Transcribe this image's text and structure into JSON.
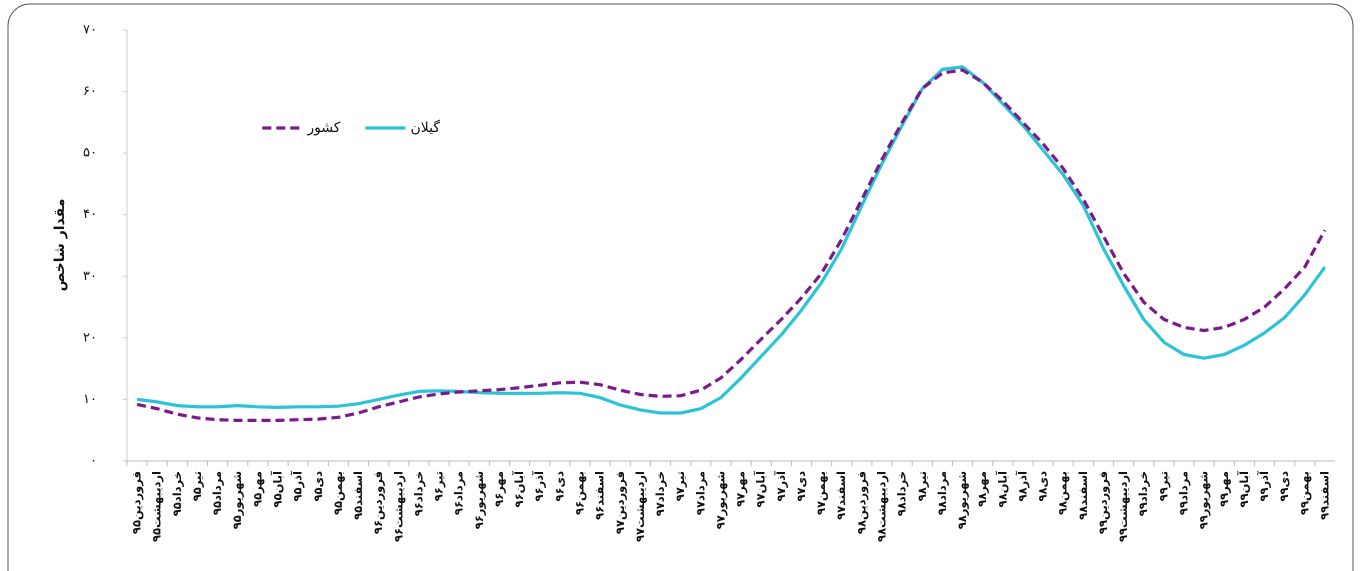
{
  "chart_data": {
    "type": "line",
    "ylabel": "مقدار شاخص",
    "categories": [
      "فروردین۹۵",
      "اردیبهشت۹۵",
      "خرداد۹۵",
      "تیر۹۵",
      "مرداد۹۵",
      "شهریور۹۵",
      "مهر۹۵",
      "آبان۹۵",
      "آذر۹۵",
      "دی۹۵",
      "بهمن۹۵",
      "اسفند۹۵",
      "فروردین۹۶",
      "اردیبهشت۹۶",
      "خرداد۹۶",
      "تیر۹۶",
      "مرداد۹۶",
      "شهریور۹۶",
      "مهر۹۶",
      "آبان۹۶",
      "آذر۹۶",
      "دی۹۶",
      "بهمن۹۶",
      "اسفند۹۶",
      "فروردین۹۷",
      "اردیبهشت۹۷",
      "خرداد۹۷",
      "تیر۹۷",
      "مرداد۹۷",
      "شهریور۹۷",
      "مهر۹۷",
      "آبان۹۷",
      "آذر۹۷",
      "دی۹۷",
      "بهمن۹۷",
      "اسفند۹۷",
      "فروردین۹۸",
      "اردیبهشت۹۸",
      "خرداد۹۸",
      "تیر۹۸",
      "مرداد۹۸",
      "شهریور۹۸",
      "مهر۹۸",
      "آبان۹۸",
      "آذر۹۸",
      "دی۹۸",
      "بهمن۹۸",
      "اسفند۹۸",
      "فروردین۹۹",
      "اردیبهشت۹۹",
      "خرداد۹۹",
      "تیر۹۹",
      "مرداد۹۹",
      "شهریور۹۹",
      "مهر۹۹",
      "آبان۹۹",
      "آذر۹۹",
      "دی۹۹",
      "بهمن۹۹",
      "اسفند۹۹"
    ],
    "series": [
      {
        "name": "گیلان",
        "color": "#2bc3d6",
        "dashed": false,
        "values": [
          10.0,
          9.6,
          9.0,
          8.8,
          8.8,
          9.0,
          8.8,
          8.7,
          8.8,
          8.8,
          8.9,
          9.3,
          10.0,
          10.7,
          11.3,
          11.4,
          11.3,
          11.1,
          11.0,
          11.0,
          11.0,
          11.1,
          11.0,
          10.3,
          9.1,
          8.3,
          7.8,
          7.8,
          8.5,
          10.3,
          13.5,
          17.0,
          20.5,
          24.5,
          29.0,
          34.5,
          41.5,
          48.3,
          54.5,
          60.5,
          63.6,
          64.0,
          61.5,
          58.0,
          54.5,
          50.5,
          46.5,
          41.5,
          34.5,
          28.5,
          23.0,
          19.3,
          17.3,
          16.7,
          17.3,
          18.8,
          20.8,
          23.3,
          27.0,
          31.5
        ]
      },
      {
        "name": "کشور",
        "color": "#7b1a8c",
        "dashed": true,
        "values": [
          9.2,
          8.5,
          7.6,
          7.0,
          6.7,
          6.6,
          6.6,
          6.6,
          6.7,
          6.8,
          7.1,
          7.8,
          8.8,
          9.6,
          10.4,
          10.9,
          11.2,
          11.4,
          11.6,
          11.9,
          12.3,
          12.7,
          12.8,
          12.4,
          11.5,
          10.8,
          10.5,
          10.6,
          11.5,
          13.5,
          16.5,
          19.8,
          23.0,
          26.5,
          30.5,
          36.0,
          42.5,
          49.0,
          55.0,
          60.5,
          63.0,
          63.5,
          61.5,
          58.5,
          55.0,
          51.5,
          47.5,
          42.5,
          36.5,
          30.5,
          25.8,
          23.0,
          21.7,
          21.2,
          21.7,
          23.0,
          25.0,
          28.0,
          31.5,
          37.5
        ]
      }
    ],
    "ylim": [
      0,
      70
    ],
    "yticks": [
      {
        "value": 0,
        "label": "۰"
      },
      {
        "value": 10,
        "label": "۱۰"
      },
      {
        "value": 20,
        "label": "۲۰"
      },
      {
        "value": 30,
        "label": "۳۰"
      },
      {
        "value": 40,
        "label": "۴۰"
      },
      {
        "value": 50,
        "label": "۵۰"
      },
      {
        "value": 60,
        "label": "۶۰"
      },
      {
        "value": 70,
        "label": "۷۰"
      }
    ],
    "grid": false
  }
}
